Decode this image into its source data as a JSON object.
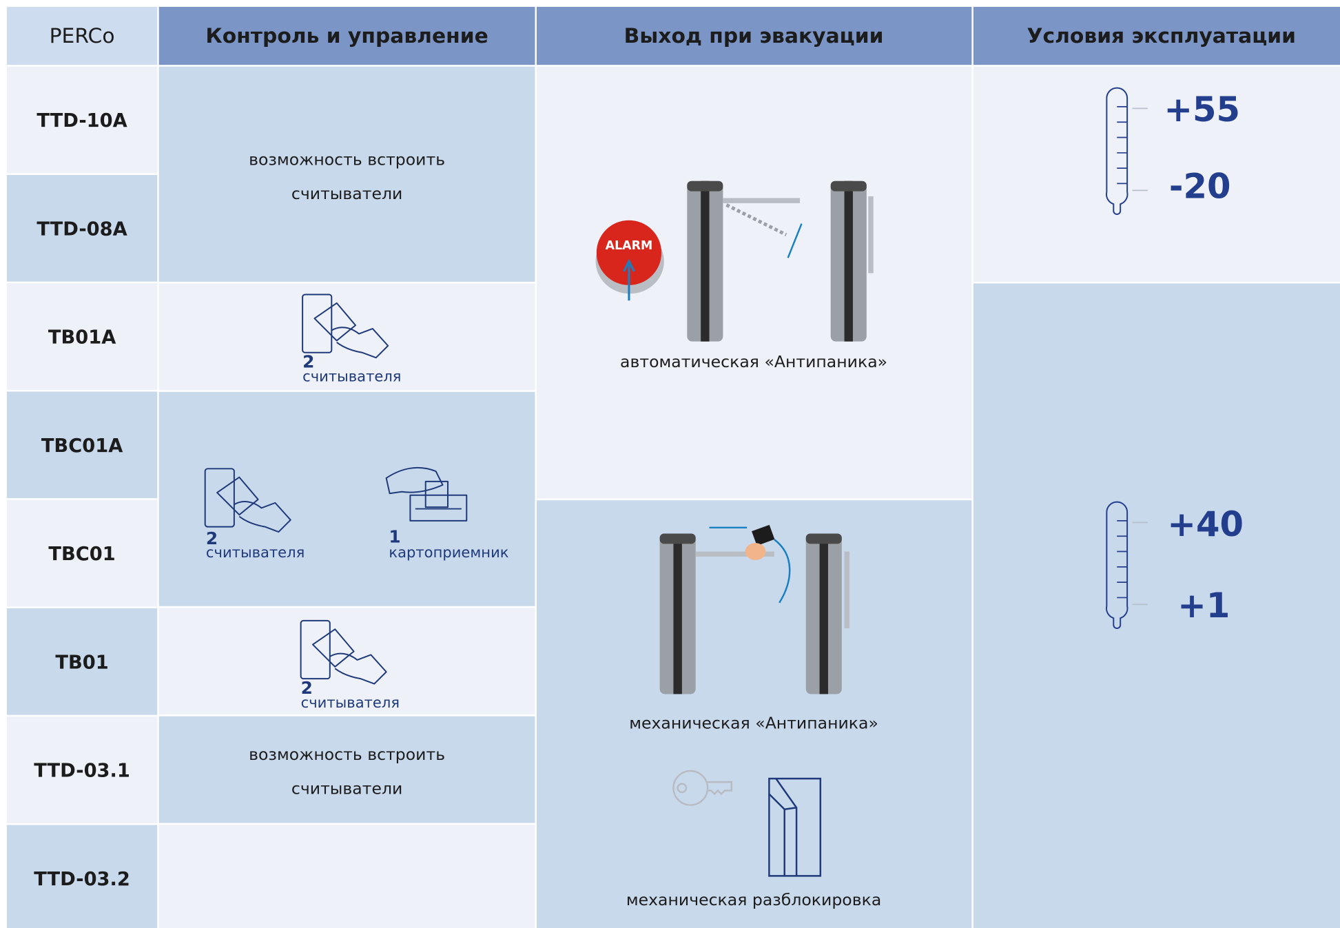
{
  "header": {
    "brand": "PERCo",
    "columns": [
      "Контроль и управление",
      "Выход при эвакуации",
      "Условия эксплуатации"
    ]
  },
  "models": [
    "TTD-10A",
    "TTD-08A",
    "TB01A",
    "TBC01A",
    "TBC01",
    "TB01",
    "TTD-03.1",
    "TTD-03.2"
  ],
  "control": {
    "builtin_readers": [
      "возможность встроить",
      "считыватели"
    ],
    "readers_count": "2",
    "readers_label": "считывателя",
    "acceptor_count": "1",
    "acceptor_label": "картоприемник"
  },
  "evacuation": {
    "alarm_label": "ALARM",
    "modes": [
      "автоматическая «Антипаника»",
      "механическая «Антипаника»",
      "механическая разблокировка"
    ]
  },
  "conditions": [
    {
      "max": "+55",
      "min": "-20"
    },
    {
      "max": "+40",
      "min": "+1"
    }
  ]
}
